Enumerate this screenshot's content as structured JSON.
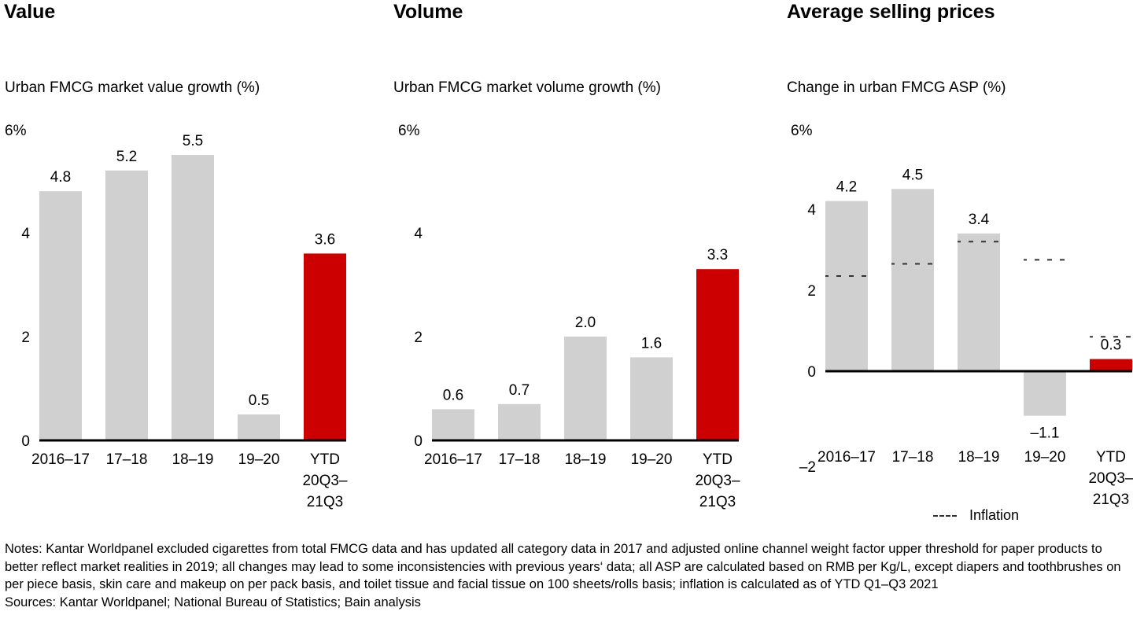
{
  "panels": [
    {
      "title": "Value",
      "subtitle": "Urban FMCG market value growth (%)"
    },
    {
      "title": "Volume",
      "subtitle": "Urban FMCG market volume growth (%)"
    },
    {
      "title": "Average selling prices",
      "subtitle": "Change in urban FMCG ASP (%)"
    }
  ],
  "colors": {
    "bar_default": "#d0d0d0",
    "bar_highlight": "#cc0000",
    "axis": "#000000",
    "inflation": "#333333"
  },
  "chart_data": [
    {
      "type": "bar",
      "title": "Value",
      "ylabel": "Urban FMCG market value growth (%)",
      "categories": [
        [
          "2016–17"
        ],
        [
          "17–18"
        ],
        [
          "18–19"
        ],
        [
          "19–20"
        ],
        [
          "YTD",
          "20Q3–",
          "21Q3"
        ]
      ],
      "values": [
        4.8,
        5.2,
        5.5,
        0.5,
        3.6
      ],
      "value_labels": [
        "4.8",
        "5.2",
        "5.5",
        "0.5",
        "3.6"
      ],
      "highlight_index": 4,
      "yticks": [
        {
          "v": 6,
          "label": "6%"
        },
        {
          "v": 4,
          "label": "4"
        },
        {
          "v": 2,
          "label": "2"
        },
        {
          "v": 0,
          "label": "0"
        }
      ],
      "ylim": [
        0,
        6
      ],
      "grid": false
    },
    {
      "type": "bar",
      "title": "Volume",
      "ylabel": "Urban FMCG market volume growth (%)",
      "categories": [
        [
          "2016–17"
        ],
        [
          "17–18"
        ],
        [
          "18–19"
        ],
        [
          "19–20"
        ],
        [
          "YTD",
          "20Q3–",
          "21Q3"
        ]
      ],
      "values": [
        0.6,
        0.7,
        2.0,
        1.6,
        3.3
      ],
      "value_labels": [
        "0.6",
        "0.7",
        "2.0",
        "1.6",
        "3.3"
      ],
      "highlight_index": 4,
      "yticks": [
        {
          "v": 6,
          "label": "6%"
        },
        {
          "v": 4,
          "label": "4"
        },
        {
          "v": 2,
          "label": "2"
        },
        {
          "v": 0,
          "label": "0"
        }
      ],
      "ylim": [
        0,
        6
      ],
      "grid": false
    },
    {
      "type": "bar",
      "title": "Average selling prices",
      "ylabel": "Change in urban FMCG ASP (%)",
      "categories": [
        [
          "2016–17"
        ],
        [
          "17–18"
        ],
        [
          "18–19"
        ],
        [
          "19–20"
        ],
        [
          "YTD",
          "20Q3–",
          "21Q3"
        ]
      ],
      "values": [
        4.2,
        4.5,
        3.4,
        -1.1,
        0.3
      ],
      "value_labels": [
        "4.2",
        "4.5",
        "3.4",
        "–1.1",
        "0.3"
      ],
      "highlight_index": 4,
      "series_overlay": {
        "name": "Inflation",
        "style": "dashed",
        "values": [
          2.35,
          2.65,
          3.2,
          2.75,
          0.85
        ]
      },
      "yticks": [
        {
          "v": 6,
          "label": "6%"
        },
        {
          "v": 4,
          "label": "4"
        },
        {
          "v": 2,
          "label": "2"
        },
        {
          "v": 0,
          "label": "0"
        },
        {
          "v": -2,
          "label": "–2"
        }
      ],
      "ylim": [
        -2,
        6
      ],
      "legend": {
        "entries": [
          "Inflation"
        ],
        "placement": "bottom-right"
      },
      "grid": false
    }
  ],
  "legend": {
    "inflation_label": "Inflation"
  },
  "footer": {
    "notes": "Notes: Kantar Worldpanel excluded cigarettes from total FMCG data and has updated all category data in 2017 and adjusted online channel weight factor upper threshold for paper products to better reflect market realities in 2019; all changes may lead to some inconsistencies with previous years‘ data; all ASP are calculated based on RMB per Kg/L, except diapers and toothbrushes on per piece basis, skin care and makeup on per pack basis, and toilet tissue and facial tissue on 100 sheets/rolls basis; inflation is calculated as of YTD Q1–Q3 2021",
    "sources": "Sources: Kantar Worldpanel; National Bureau of Statistics; Bain analysis"
  }
}
